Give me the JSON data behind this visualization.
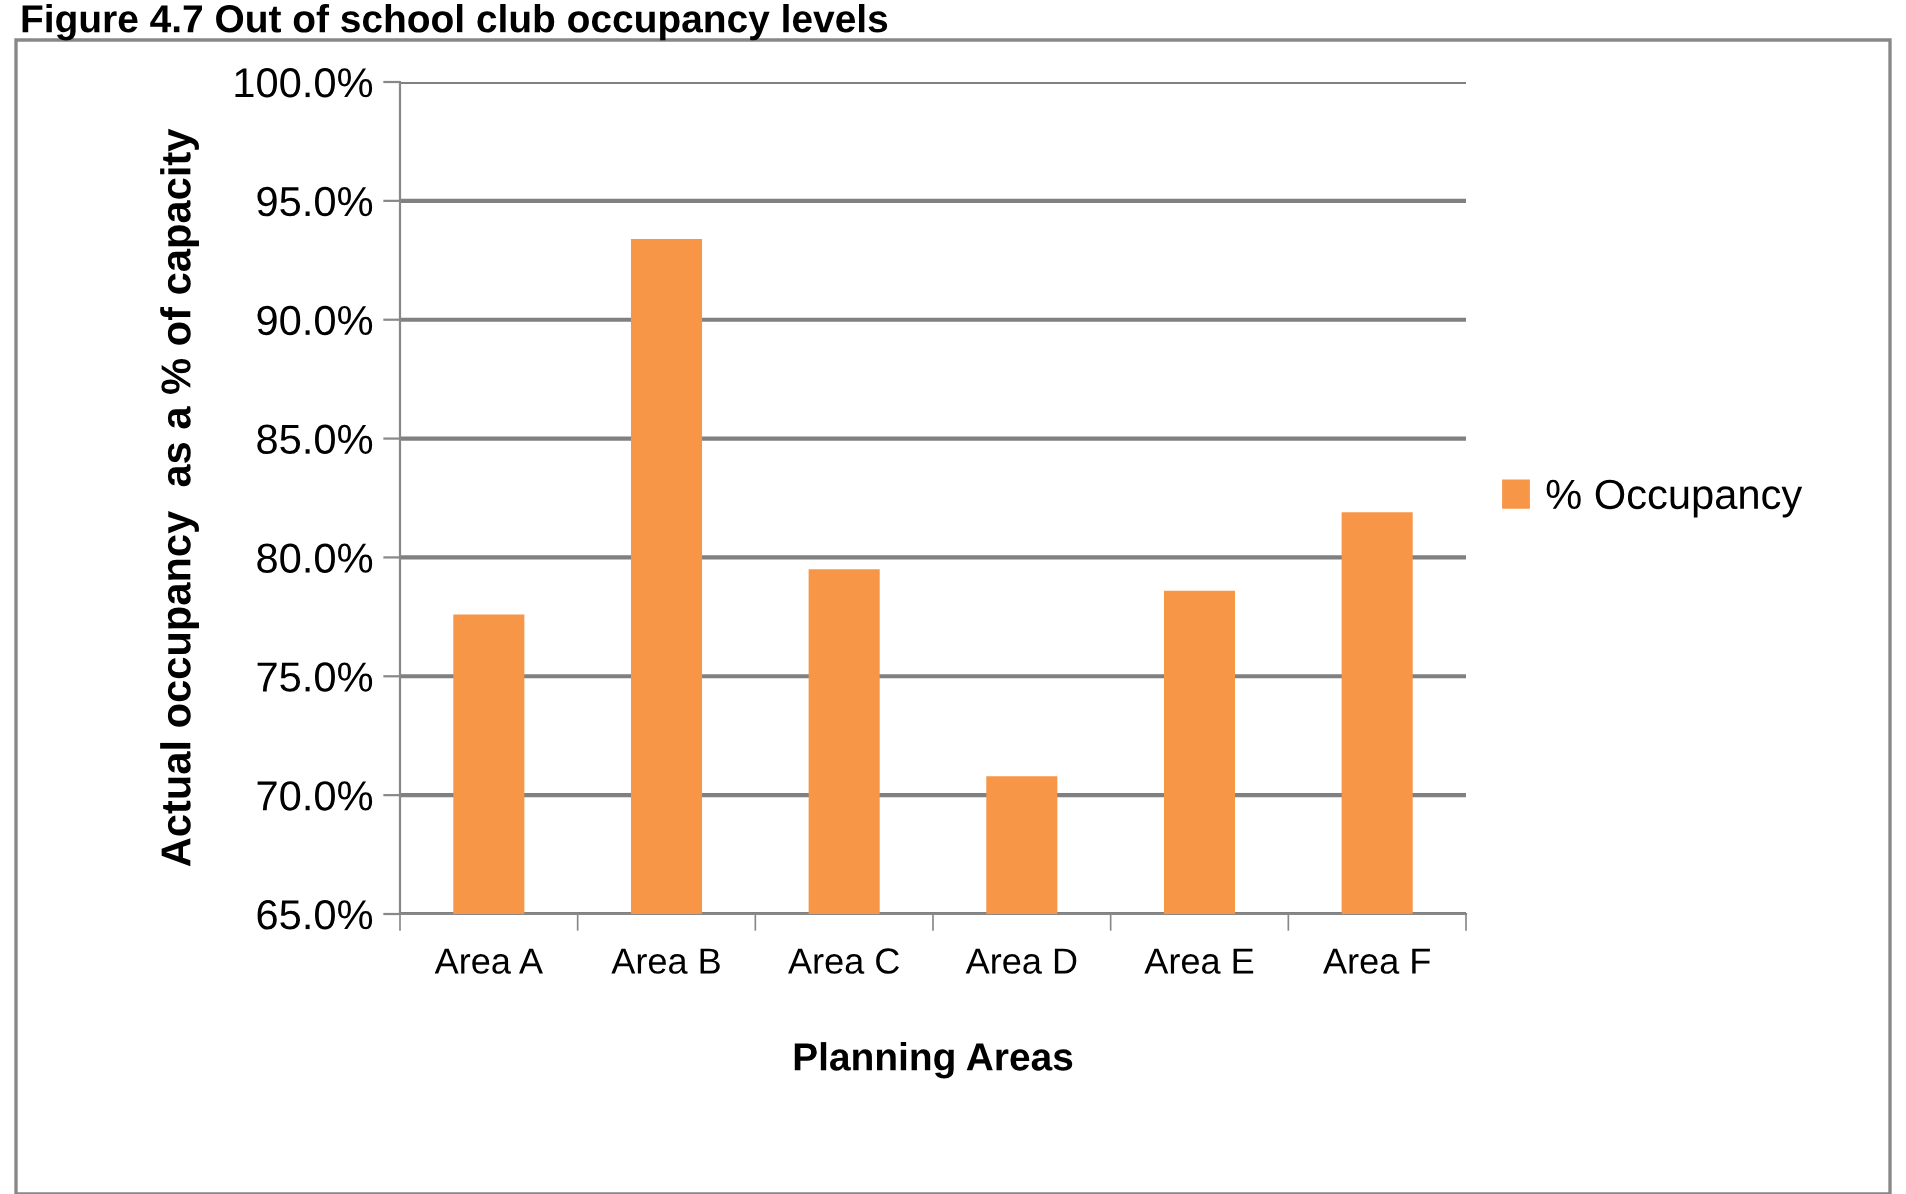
{
  "chart_data": {
    "type": "bar",
    "title": "Figure 4.7 Out of school club occupancy levels",
    "xlabel": "Planning Areas",
    "ylabel": "Actual occupancy  as a % of capacity",
    "categories": [
      "Area A",
      "Area B",
      "Area C",
      "Area D",
      "Area E",
      "Area F"
    ],
    "series": [
      {
        "name": "% Occupancy",
        "color": "#f79646",
        "values": [
          77.6,
          93.4,
          79.5,
          70.8,
          78.6,
          81.9
        ]
      }
    ],
    "ylim": [
      65,
      100
    ],
    "yticks": [
      {
        "value": 65,
        "label": "65.0%"
      },
      {
        "value": 70,
        "label": "70.0%"
      },
      {
        "value": 75,
        "label": "75.0%"
      },
      {
        "value": 80,
        "label": "80.0%"
      },
      {
        "value": 85,
        "label": "85.0%"
      },
      {
        "value": 90,
        "label": "90.0%"
      },
      {
        "value": 95,
        "label": "95.0%"
      },
      {
        "value": 100,
        "label": "100.0%"
      }
    ],
    "grid": "y",
    "legend": "right"
  }
}
